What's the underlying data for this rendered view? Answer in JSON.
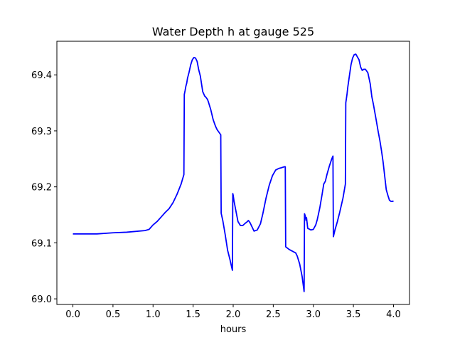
{
  "chart_data": {
    "type": "line",
    "title": "Water Depth h at gauge 525",
    "xlabel": "hours",
    "ylabel": "",
    "xlim": [
      -0.2,
      4.2
    ],
    "ylim": [
      68.99,
      69.46
    ],
    "xticks": [
      0.0,
      0.5,
      1.0,
      1.5,
      2.0,
      2.5,
      3.0,
      3.5,
      4.0
    ],
    "xtick_labels": [
      "0.0",
      "0.5",
      "1.0",
      "1.5",
      "2.0",
      "2.5",
      "3.0",
      "3.5",
      "4.0"
    ],
    "yticks": [
      69.0,
      69.1,
      69.2,
      69.3,
      69.4
    ],
    "ytick_labels": [
      "69.0",
      "69.1",
      "69.2",
      "69.3",
      "69.4"
    ],
    "grid": false,
    "line_color": "#0000ff",
    "series": [
      {
        "x": [
          0.0,
          0.3,
          0.5,
          0.67,
          0.9,
          0.95,
          1.0,
          1.05,
          1.1,
          1.15,
          1.2,
          1.25,
          1.3,
          1.35,
          1.385,
          1.39,
          1.4,
          1.41,
          1.42,
          1.43,
          1.45,
          1.47,
          1.49,
          1.51,
          1.53,
          1.55,
          1.57,
          1.59,
          1.62,
          1.645,
          1.66,
          1.68,
          1.69,
          1.72,
          1.75,
          1.78,
          1.8,
          1.82,
          1.845,
          1.85,
          1.87,
          1.9,
          1.93,
          1.96,
          1.99,
          1.995,
          2.0,
          2.01,
          2.03,
          2.06,
          2.09,
          2.12,
          2.15,
          2.17,
          2.19,
          2.21,
          2.23,
          2.26,
          2.3,
          2.34,
          2.37,
          2.39,
          2.41,
          2.45,
          2.49,
          2.53,
          2.57,
          2.6,
          2.62,
          2.64,
          2.65,
          2.655,
          2.7,
          2.78,
          2.8,
          2.83,
          2.86,
          2.885,
          2.89,
          2.9,
          2.91,
          2.915,
          2.93,
          2.97,
          3.0,
          3.03,
          3.05,
          3.08,
          3.11,
          3.13,
          3.15,
          3.17,
          3.2,
          3.23,
          3.245,
          3.25,
          3.27,
          3.3,
          3.33,
          3.37,
          3.4,
          3.405,
          3.42,
          3.43,
          3.45,
          3.47,
          3.49,
          3.51,
          3.53,
          3.55,
          3.57,
          3.59,
          3.61,
          3.63,
          3.65,
          3.68,
          3.71,
          3.73,
          3.75,
          3.78,
          3.81,
          3.83,
          3.85,
          3.87,
          3.89,
          3.91,
          3.93,
          3.95,
          3.97,
          3.99,
          4.0
        ],
        "y": [
          69.116,
          69.116,
          69.118,
          69.119,
          69.122,
          69.124,
          69.132,
          69.138,
          69.146,
          69.154,
          69.161,
          69.172,
          69.187,
          69.205,
          69.222,
          69.365,
          69.372,
          69.38,
          69.385,
          69.394,
          69.405,
          69.418,
          69.427,
          69.431,
          69.43,
          69.424,
          69.409,
          69.398,
          69.37,
          69.362,
          69.36,
          69.356,
          69.352,
          69.338,
          69.32,
          69.308,
          69.302,
          69.298,
          69.293,
          69.153,
          69.14,
          69.115,
          69.087,
          69.07,
          69.051,
          69.188,
          69.185,
          69.175,
          69.16,
          69.138,
          69.131,
          69.131,
          69.135,
          69.137,
          69.14,
          69.136,
          69.13,
          69.121,
          69.123,
          69.134,
          69.152,
          69.166,
          69.18,
          69.203,
          69.22,
          69.23,
          69.233,
          69.234,
          69.235,
          69.236,
          69.236,
          69.093,
          69.088,
          69.082,
          69.076,
          69.062,
          69.04,
          69.013,
          69.152,
          69.148,
          69.14,
          69.145,
          69.126,
          69.123,
          69.124,
          69.132,
          69.142,
          69.162,
          69.187,
          69.205,
          69.21,
          69.222,
          69.237,
          69.25,
          69.255,
          69.111,
          69.123,
          69.138,
          69.155,
          69.18,
          69.205,
          69.35,
          69.365,
          69.378,
          69.398,
          69.418,
          69.43,
          69.436,
          69.437,
          69.432,
          69.427,
          69.414,
          69.408,
          69.41,
          69.41,
          69.404,
          69.384,
          69.361,
          69.347,
          69.323,
          69.298,
          69.283,
          69.265,
          69.245,
          69.22,
          69.195,
          69.185,
          69.176,
          69.174,
          69.174,
          69.175
        ]
      }
    ]
  }
}
